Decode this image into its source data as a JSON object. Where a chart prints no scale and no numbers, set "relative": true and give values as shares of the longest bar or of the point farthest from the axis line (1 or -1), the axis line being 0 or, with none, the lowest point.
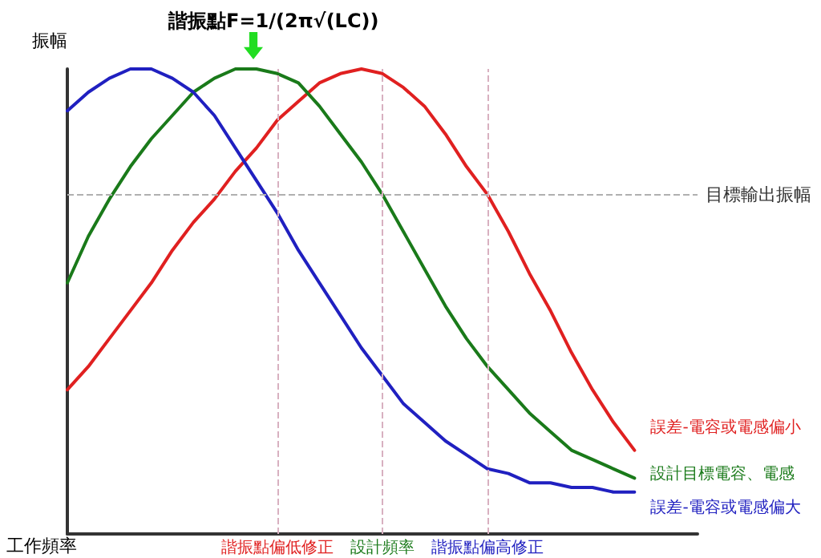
{
  "chart_data": {
    "type": "line",
    "title": "諧振點F=1/(2π√(LC))",
    "xlabel": "工作頻率",
    "ylabel": "振幅",
    "relative": true,
    "ylim": [
      0,
      1
    ],
    "categories": [
      null,
      null,
      null,
      null,
      null,
      null,
      null,
      null,
      null,
      null,
      "諧振點偏低修正",
      null,
      null,
      null,
      null,
      "設計頻率",
      null,
      null,
      null,
      null,
      "諧振點偏高修正",
      null,
      null,
      null,
      null,
      null,
      null,
      null,
      null,
      null,
      null
    ],
    "series": [
      {
        "name": "誤差-電容或電感偏小",
        "color": "#e02020",
        "values": [
          0.31,
          0.36,
          0.42,
          0.48,
          0.54,
          0.61,
          0.67,
          0.72,
          0.78,
          0.83,
          0.89,
          0.93,
          0.97,
          0.99,
          1.0,
          0.99,
          0.96,
          0.92,
          0.86,
          0.79,
          0.73,
          0.65,
          0.56,
          0.48,
          0.39,
          0.31,
          0.24,
          0.18,
          null,
          null,
          null
        ]
      },
      {
        "name": "設計目標電容、電感",
        "color": "#1a7a1a",
        "values": [
          0.54,
          0.64,
          0.72,
          0.79,
          0.85,
          0.9,
          0.95,
          0.98,
          1.0,
          1.0,
          0.99,
          0.97,
          0.92,
          0.86,
          0.8,
          0.73,
          0.65,
          0.57,
          0.49,
          0.42,
          0.36,
          0.31,
          0.26,
          0.22,
          0.18,
          0.16,
          0.14,
          0.12,
          null,
          null,
          null
        ]
      },
      {
        "name": "誤差-電容或電感偏大",
        "color": "#2020c0",
        "values": [
          0.91,
          0.95,
          0.98,
          1.0,
          1.0,
          0.98,
          0.95,
          0.9,
          0.83,
          0.76,
          0.69,
          0.61,
          0.54,
          0.47,
          0.4,
          0.34,
          0.28,
          0.24,
          0.2,
          0.17,
          0.14,
          0.13,
          0.11,
          0.11,
          0.1,
          0.1,
          0.09,
          0.09,
          null,
          null,
          null
        ]
      }
    ],
    "ref_lines": [
      {
        "axis": "y",
        "value": 0.73,
        "label": "目標輸出振幅",
        "color": "#b0b0b0",
        "line_style": "dashed"
      },
      {
        "axis": "x",
        "value": "諧振點偏低修正",
        "label": null,
        "color": "#d8b0c0",
        "line_style": "dashed"
      },
      {
        "axis": "x",
        "value": "設計頻率",
        "label": null,
        "color": "#d8b0c0",
        "line_style": "dashed"
      },
      {
        "axis": "x",
        "value": "諧振點偏高修正",
        "label": null,
        "color": "#d8b0c0",
        "line_style": "dashed"
      }
    ],
    "legend": false,
    "grid": false,
    "marker": "none",
    "line_style": "solid"
  }
}
